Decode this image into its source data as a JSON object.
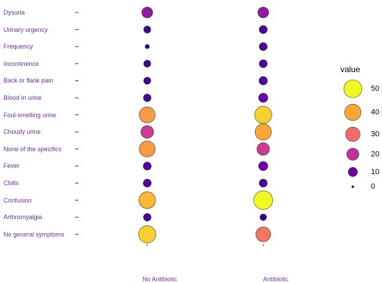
{
  "chart_data": {
    "type": "bubble",
    "categories": [
      "Dysuria",
      "Urinary urgency",
      "Frequency",
      "Incontinence",
      "Back or flank pain",
      "Blood in urine",
      "Foul-smelling urine",
      "Choudy urine",
      "None of the specifics",
      "Fever",
      "Chills",
      "Confusion",
      "Arthromyalgia",
      "No general symptoms"
    ],
    "series": [
      {
        "name": "No Antibiotic",
        "values": [
          15,
          5,
          1,
          5,
          5,
          6,
          38,
          22,
          38,
          7,
          7,
          42,
          6,
          45
        ]
      },
      {
        "name": "Antibiotic",
        "values": [
          15,
          7,
          7,
          7,
          8,
          10,
          45,
          40,
          22,
          10,
          7,
          55,
          4,
          32
        ]
      }
    ],
    "legend_title": "value",
    "legend_values": [
      50,
      40,
      30,
      20,
      10,
      0
    ],
    "color_scale": [
      {
        "value": 0,
        "color": "#0d0887"
      },
      {
        "value": 10,
        "color": "#6a00a8"
      },
      {
        "value": 20,
        "color": "#c0329a"
      },
      {
        "value": 30,
        "color": "#f06a70"
      },
      {
        "value": 40,
        "color": "#fca636"
      },
      {
        "value": 50,
        "color": "#f0f921"
      }
    ]
  }
}
